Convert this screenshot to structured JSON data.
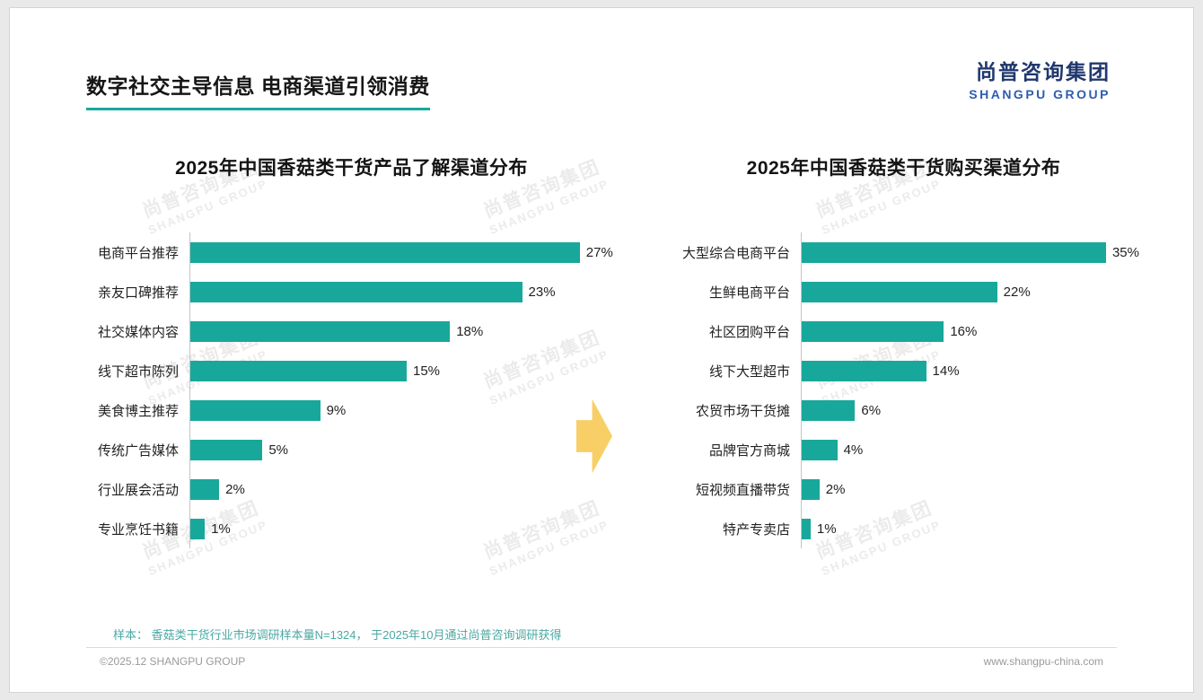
{
  "page": {
    "headline": "数字社交主导信息 电商渠道引领消费",
    "logo": {
      "cn": "尚普咨询集团",
      "en": "SHANGPU GROUP"
    },
    "footnote": "样本： 香菇类干货行业市场调研样本量N=1324， 于2025年10月通过尚普咨询调研获得",
    "footer_left": "©2025.12 SHANGPU GROUP",
    "footer_right": "www.shangpu-china.com"
  },
  "watermark": {
    "line1": "尚普咨询集团",
    "line2": "SHANGPU GROUP"
  },
  "colors": {
    "bar_teal": "#18a89b",
    "accent_underline": "#18a89b",
    "arrow_yellow": "#f8cf66",
    "logo_navy": "#20386e",
    "logo_blue": "#2f5cad",
    "footnote_teal": "#4aa9a3"
  },
  "chart_data": [
    {
      "type": "bar",
      "orientation": "horizontal",
      "title": "2025年中国香菇类干货产品了解渠道分布",
      "categories": [
        "电商平台推荐",
        "亲友口碑推荐",
        "社交媒体内容",
        "线下超市陈列",
        "美食博主推荐",
        "传统广告媒体",
        "行业展会活动",
        "专业烹饪书籍"
      ],
      "values": [
        27,
        23,
        18,
        15,
        9,
        5,
        2,
        1
      ],
      "unit": "%",
      "xlim": [
        0,
        30
      ],
      "grid": false,
      "legend": "none",
      "bar_color": "#18a89b"
    },
    {
      "type": "bar",
      "orientation": "horizontal",
      "title": "2025年中国香菇类干货购买渠道分布",
      "categories": [
        "大型综合电商平台",
        "生鲜电商平台",
        "社区团购平台",
        "线下大型超市",
        "农贸市场干货摊",
        "品牌官方商城",
        "短视频直播带货",
        "特产专卖店"
      ],
      "values": [
        35,
        22,
        16,
        14,
        6,
        4,
        2,
        1
      ],
      "unit": "%",
      "xlim": [
        0,
        38
      ],
      "grid": false,
      "legend": "none",
      "bar_color": "#18a89b"
    }
  ]
}
